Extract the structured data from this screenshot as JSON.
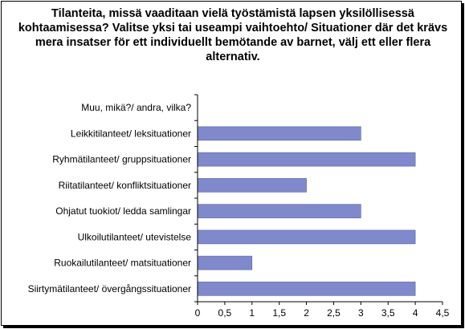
{
  "chart_data": {
    "type": "bar",
    "orientation": "horizontal",
    "title": "Tilanteita, missä vaaditaan vielä työstämistä lapsen yksilöllisessä kohtaamisessa? Valitse yksi tai useampi vaihtoehto/ Situationer där det krävs mera insatser för ett individuellt bemötande av barnet, välj ett eller flera alternativ.",
    "categories": [
      "Muu, mikä?/ andra, vilka?",
      "Leikkitilanteet/ leksituationer",
      "Ryhmätilanteet/ gruppsituationer",
      "Riitatilanteet/ konfliktsituationer",
      "Ohjatut tuokiot/ ledda samlingar",
      "Ulkoilutilanteet/ utevistelse",
      "Ruokailutilanteet/ matsituationer",
      "Siirtymätilanteet/ övergångssituationer"
    ],
    "values": [
      0,
      3,
      4,
      2,
      3,
      4,
      1,
      4
    ],
    "xlim": [
      0,
      4.5
    ],
    "xticks": [
      "0",
      "0,5",
      "1",
      "1,5",
      "2",
      "2,5",
      "3",
      "3,5",
      "4",
      "4,5"
    ],
    "bar_color": "#7f89cc",
    "grid": false,
    "legend": "none"
  }
}
